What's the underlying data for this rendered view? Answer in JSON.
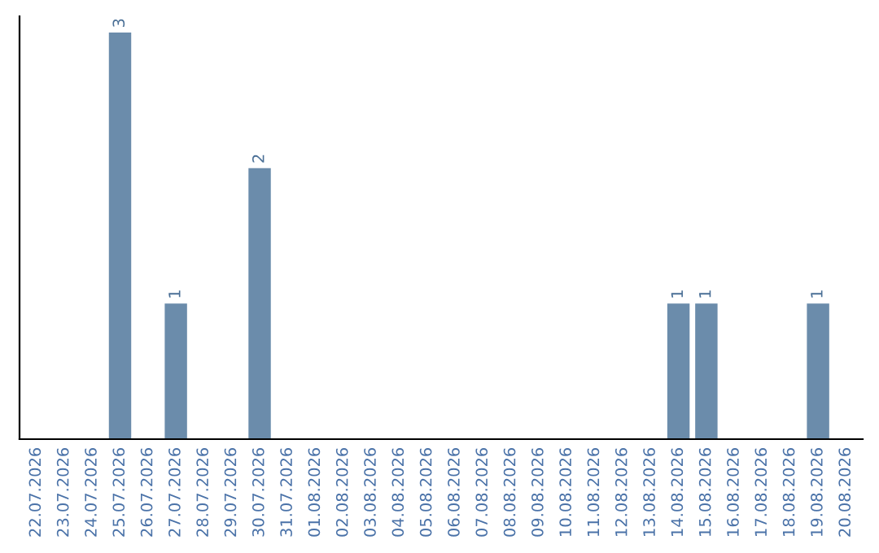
{
  "chart_data": {
    "type": "bar",
    "categories": [
      "22.07.2026",
      "23.07.2026",
      "24.07.2026",
      "25.07.2026",
      "26.07.2026",
      "27.07.2026",
      "28.07.2026",
      "29.07.2026",
      "30.07.2026",
      "31.07.2026",
      "01.08.2026",
      "02.08.2026",
      "03.08.2026",
      "04.08.2026",
      "05.08.2026",
      "06.08.2026",
      "07.08.2026",
      "08.08.2026",
      "09.08.2026",
      "10.08.2026",
      "11.08.2026",
      "12.08.2026",
      "13.08.2026",
      "14.08.2026",
      "15.08.2026",
      "16.08.2026",
      "17.08.2026",
      "18.08.2026",
      "19.08.2026",
      "20.08.2026"
    ],
    "values": [
      0,
      0,
      0,
      3,
      0,
      1,
      0,
      0,
      2,
      0,
      0,
      0,
      0,
      0,
      0,
      0,
      0,
      0,
      0,
      0,
      0,
      0,
      0,
      1,
      1,
      0,
      0,
      0,
      1,
      0
    ],
    "color": "#6b8cab",
    "value_labels": [
      null,
      null,
      null,
      "3",
      null,
      "1",
      null,
      null,
      "2",
      null,
      null,
      null,
      null,
      null,
      null,
      null,
      null,
      null,
      null,
      null,
      null,
      null,
      null,
      "1",
      "1",
      null,
      null,
      null,
      "1",
      null
    ],
    "tick_labels": "x",
    "grid": false,
    "legend": false
  }
}
